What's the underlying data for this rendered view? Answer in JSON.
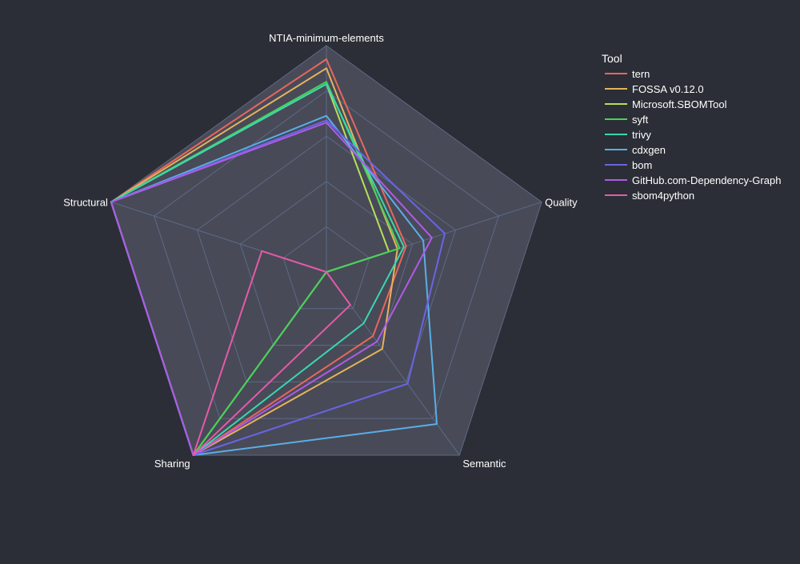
{
  "chart_data": {
    "type": "radar",
    "axes": [
      "NTIA-minimum-elements",
      "Quality",
      "Semantic",
      "Sharing",
      "Structural"
    ],
    "range": [
      0,
      1
    ],
    "grid": true,
    "legend": {
      "title": "Tool",
      "placement": "right"
    },
    "series": [
      {
        "name": "tern",
        "color": "#e8675a",
        "values": [
          0.94,
          0.37,
          0.35,
          1.0,
          1.0
        ]
      },
      {
        "name": "FOSSA v0.12.0",
        "color": "#e6b35a",
        "values": [
          0.9,
          0.33,
          0.42,
          1.0,
          1.0
        ]
      },
      {
        "name": "Microsoft.SBOMTool",
        "color": "#b5e05a",
        "values": [
          0.83,
          0.29,
          0.0,
          1.0,
          1.0
        ]
      },
      {
        "name": "syft",
        "color": "#46d35a",
        "values": [
          0.84,
          0.34,
          0.0,
          1.0,
          1.0
        ]
      },
      {
        "name": "trivy",
        "color": "#3ad6b0",
        "values": [
          0.83,
          0.36,
          0.28,
          1.0,
          1.0
        ]
      },
      {
        "name": "cdxgen",
        "color": "#5aaee6",
        "values": [
          0.69,
          0.45,
          0.83,
          1.0,
          1.0
        ]
      },
      {
        "name": "bom",
        "color": "#6a64e6",
        "values": [
          0.67,
          0.55,
          0.61,
          1.0,
          1.0
        ]
      },
      {
        "name": "GitHub.com-Dependency-Graph",
        "color": "#b05ae6",
        "values": [
          0.66,
          0.49,
          0.38,
          1.0,
          1.0
        ]
      },
      {
        "name": "sbom4python",
        "color": "#e65aa8",
        "values": [
          0.0,
          0.0,
          0.18,
          1.0,
          0.3
        ]
      }
    ]
  }
}
